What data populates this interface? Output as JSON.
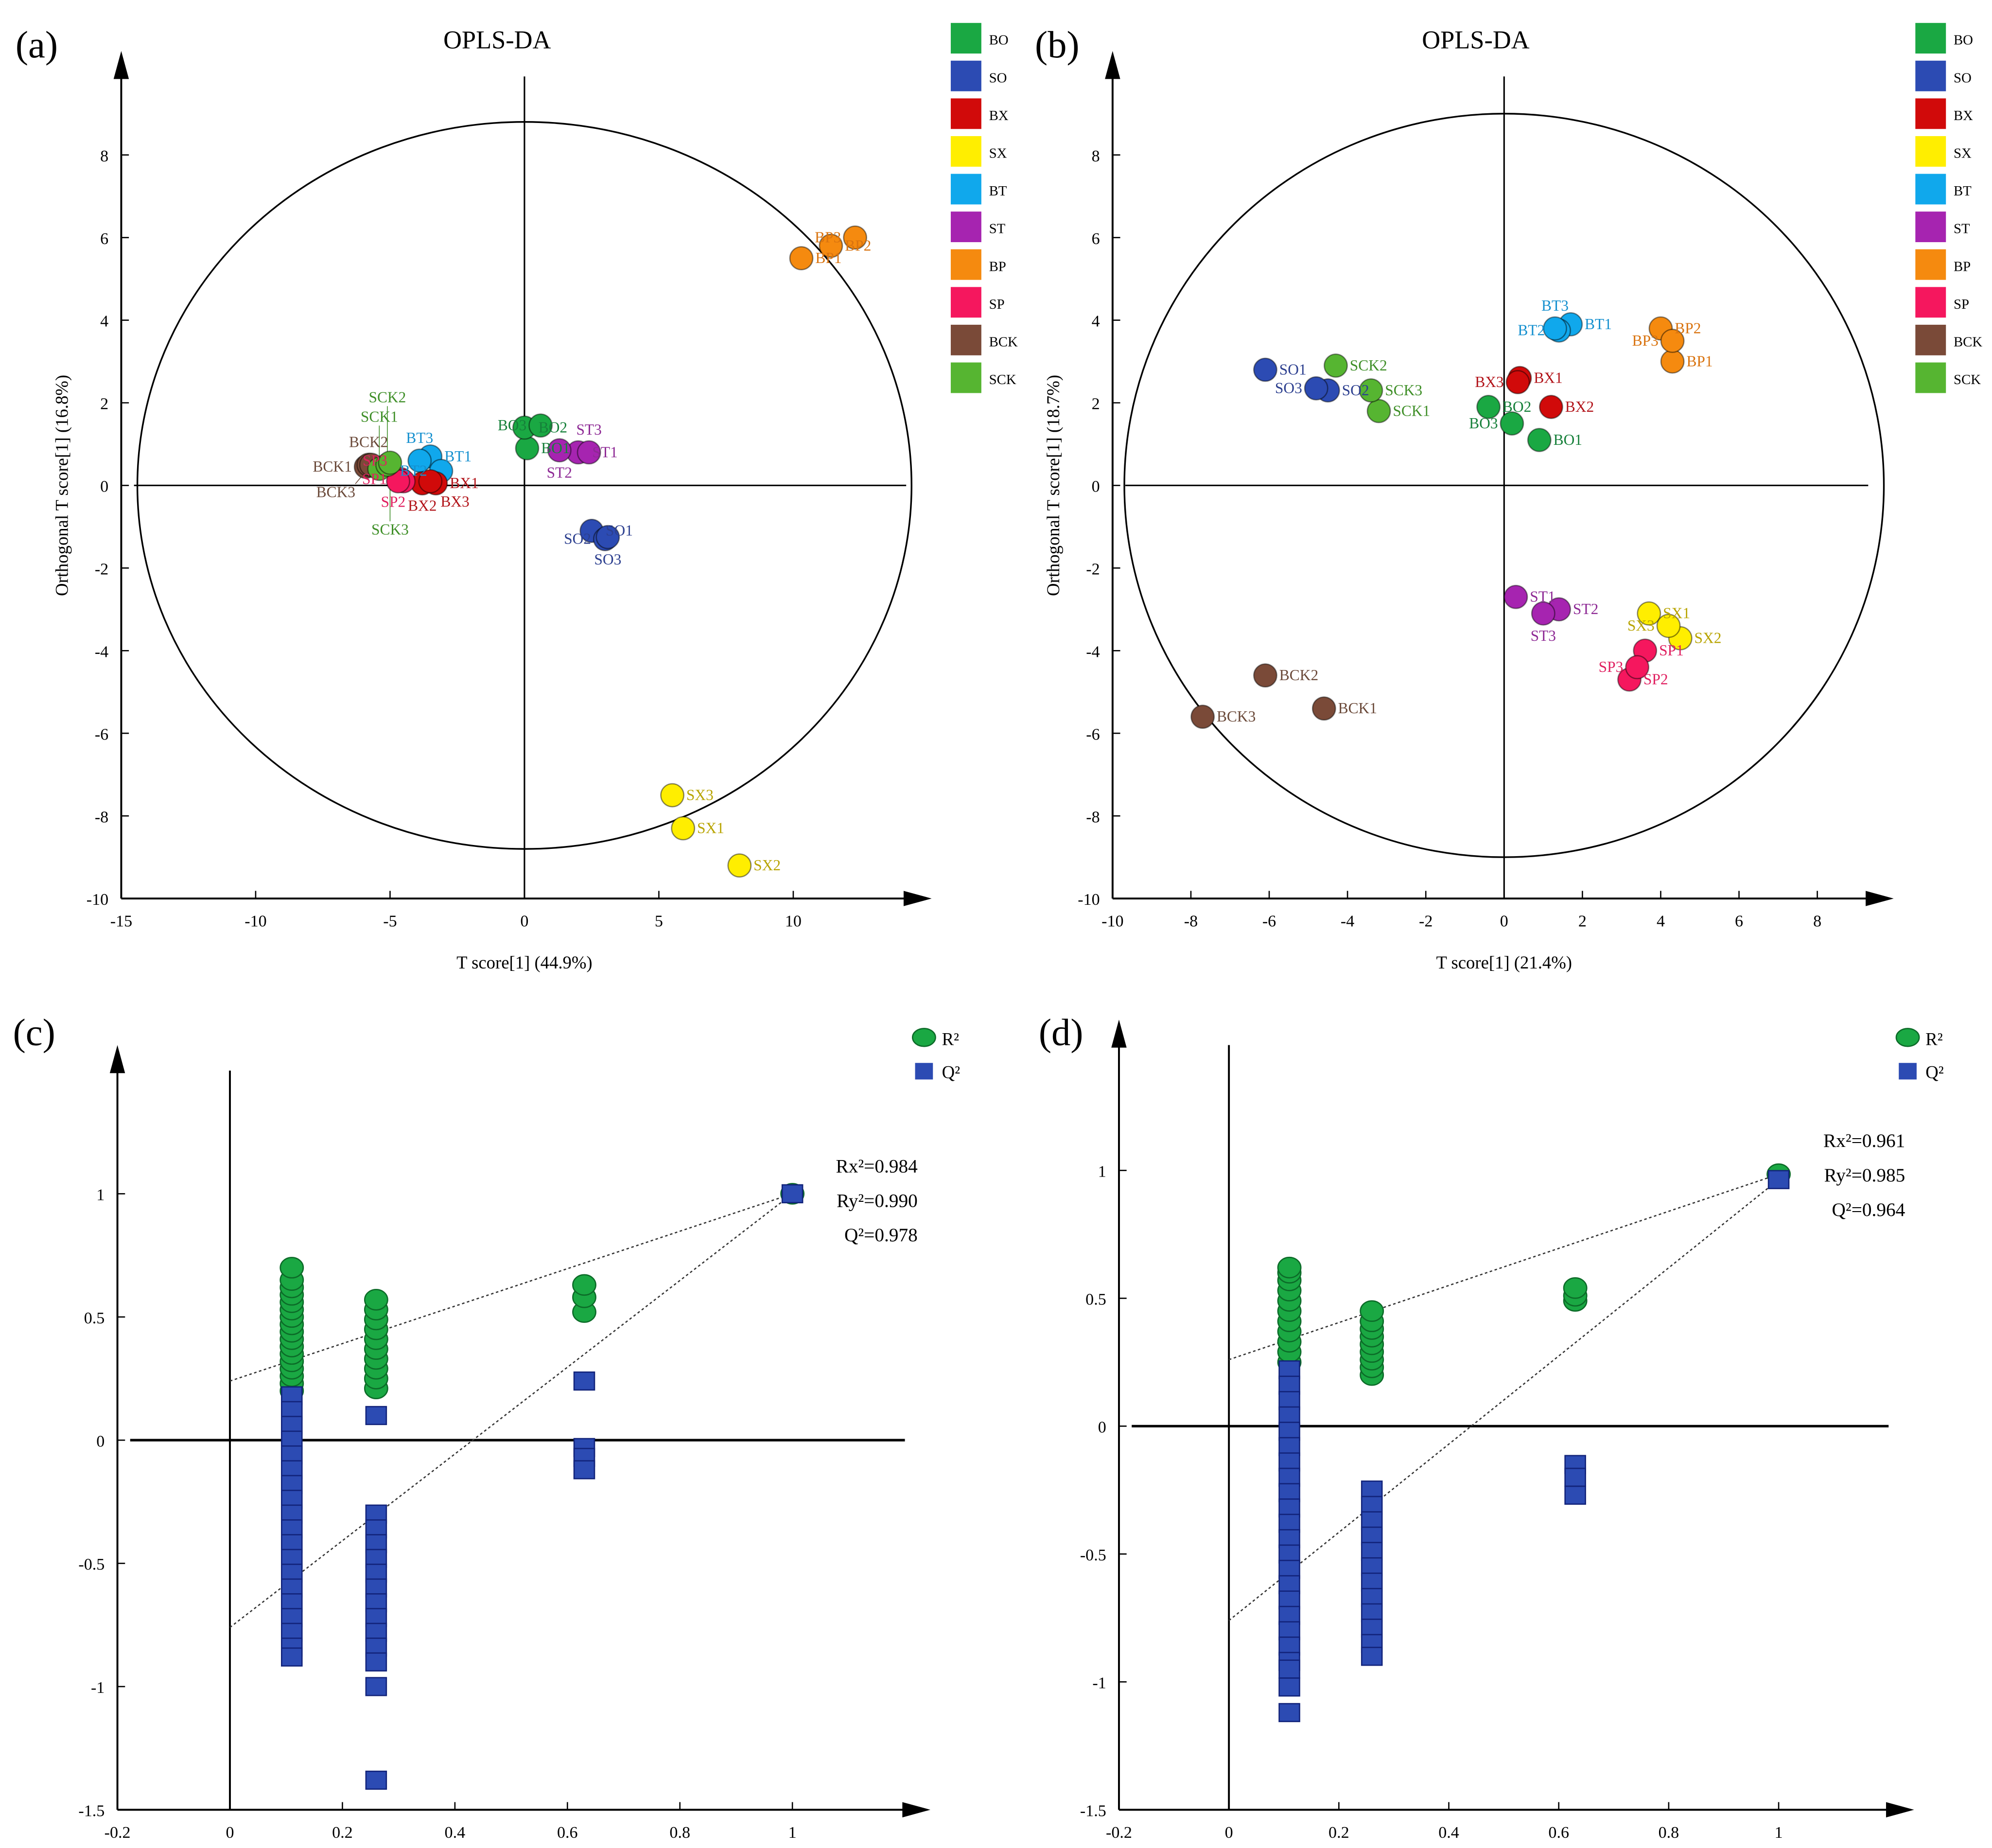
{
  "chart_data": [
    {
      "panel_label": "(a)",
      "type": "scatter",
      "title": "OPLS-DA",
      "xlabel": "T score[1] (44.9%)",
      "ylabel": "Orthogonal T score[1] (16.8%)",
      "xlim": [
        -15,
        15
      ],
      "ylim": [
        -10,
        9.5
      ],
      "xticks": [
        -15,
        -10,
        -5,
        0,
        5,
        10
      ],
      "yticks": [
        -10,
        -8,
        -6,
        -4,
        -2,
        0,
        2,
        4,
        6,
        8
      ],
      "ellipse": {
        "rx": 14.4,
        "ry": 8.8
      },
      "points": [
        {
          "label": "BP1",
          "group": "BP",
          "x": 10.3,
          "y": 5.5
        },
        {
          "label": "BP2",
          "group": "BP",
          "x": 11.4,
          "y": 5.8
        },
        {
          "label": "BP3",
          "group": "BP",
          "x": 12.3,
          "y": 6.0
        },
        {
          "label": "SX3",
          "group": "SX",
          "x": 5.5,
          "y": -7.5
        },
        {
          "label": "SX1",
          "group": "SX",
          "x": 5.9,
          "y": -8.3
        },
        {
          "label": "SX2",
          "group": "SX",
          "x": 8.0,
          "y": -9.2
        },
        {
          "label": "SO1",
          "group": "SO",
          "x": 2.5,
          "y": -1.1
        },
        {
          "label": "SO2",
          "group": "SO",
          "x": 3.0,
          "y": -1.3
        },
        {
          "label": "SO3",
          "group": "SO",
          "x": 3.1,
          "y": -1.25
        },
        {
          "label": "BO1",
          "group": "BO",
          "x": 0.1,
          "y": 0.9
        },
        {
          "label": "BO2",
          "group": "BO",
          "x": 0.0,
          "y": 1.4
        },
        {
          "label": "BO3",
          "group": "BO",
          "x": 0.6,
          "y": 1.45
        },
        {
          "label": "ST1",
          "group": "ST",
          "x": 2.0,
          "y": 0.8
        },
        {
          "label": "ST2",
          "group": "ST",
          "x": 1.3,
          "y": 0.85
        },
        {
          "label": "ST3",
          "group": "ST",
          "x": 2.4,
          "y": 0.8
        },
        {
          "label": "BT1",
          "group": "BT",
          "x": -3.5,
          "y": 0.7
        },
        {
          "label": "BT2",
          "group": "BT",
          "x": -3.1,
          "y": 0.35
        },
        {
          "label": "BT3",
          "group": "BT",
          "x": -3.9,
          "y": 0.6
        },
        {
          "label": "BX1",
          "group": "BX",
          "x": -3.3,
          "y": 0.05
        },
        {
          "label": "BX2",
          "group": "BX",
          "x": -3.8,
          "y": 0.05
        },
        {
          "label": "BX3",
          "group": "BX",
          "x": -3.5,
          "y": 0.1
        },
        {
          "label": "SP1",
          "group": "SP",
          "x": -4.6,
          "y": 0.15
        },
        {
          "label": "SP2",
          "group": "SP",
          "x": -4.5,
          "y": 0.1
        },
        {
          "label": "SP3",
          "group": "SP",
          "x": -4.7,
          "y": 0.1
        },
        {
          "label": "BCK1",
          "group": "BCK",
          "x": -5.9,
          "y": 0.45
        },
        {
          "label": "BCK2",
          "group": "BCK",
          "x": -5.8,
          "y": 0.5
        },
        {
          "label": "BCK3",
          "group": "BCK",
          "x": -5.7,
          "y": 0.5
        },
        {
          "label": "SCK1",
          "group": "SCK",
          "x": -5.4,
          "y": 0.4
        },
        {
          "label": "SCK2",
          "group": "SCK",
          "x": -5.1,
          "y": 0.5
        },
        {
          "label": "SCK3",
          "group": "SCK",
          "x": -5.0,
          "y": 0.55
        }
      ]
    },
    {
      "panel_label": "(b)",
      "type": "scatter",
      "title": "OPLS-DA",
      "xlabel": "T score[1] (21.4%)",
      "ylabel": "Orthogonal T score[1] (18.7%)",
      "xlim": [
        -10,
        9.5
      ],
      "ylim": [
        -10,
        9.5
      ],
      "xticks": [
        -10,
        -8,
        -6,
        -4,
        -2,
        0,
        2,
        4,
        6,
        8
      ],
      "yticks": [
        -10,
        -8,
        -6,
        -4,
        -2,
        0,
        2,
        4,
        6,
        8
      ],
      "ellipse": {
        "rx": 9.7,
        "ry": 9.0
      },
      "points": [
        {
          "label": "SO1",
          "group": "SO",
          "x": -6.1,
          "y": 2.8
        },
        {
          "label": "SO2",
          "group": "SO",
          "x": -4.5,
          "y": 2.3
        },
        {
          "label": "SO3",
          "group": "SO",
          "x": -4.8,
          "y": 2.35
        },
        {
          "label": "SCK1",
          "group": "SCK",
          "x": -3.2,
          "y": 1.8
        },
        {
          "label": "SCK2",
          "group": "SCK",
          "x": -4.3,
          "y": 2.9
        },
        {
          "label": "SCK3",
          "group": "SCK",
          "x": -3.4,
          "y": 2.3
        },
        {
          "label": "BO1",
          "group": "BO",
          "x": 0.9,
          "y": 1.1
        },
        {
          "label": "BO2",
          "group": "BO",
          "x": -0.4,
          "y": 1.9
        },
        {
          "label": "BO3",
          "group": "BO",
          "x": 0.2,
          "y": 1.5
        },
        {
          "label": "BX1",
          "group": "BX",
          "x": 0.4,
          "y": 2.6
        },
        {
          "label": "BX2",
          "group": "BX",
          "x": 1.2,
          "y": 1.9
        },
        {
          "label": "BX3",
          "group": "BX",
          "x": 0.35,
          "y": 2.5
        },
        {
          "label": "BT1",
          "group": "BT",
          "x": 1.7,
          "y": 3.9
        },
        {
          "label": "BT2",
          "group": "BT",
          "x": 1.4,
          "y": 3.75
        },
        {
          "label": "BT3",
          "group": "BT",
          "x": 1.3,
          "y": 3.8
        },
        {
          "label": "BP1",
          "group": "BP",
          "x": 4.3,
          "y": 3.0
        },
        {
          "label": "BP2",
          "group": "BP",
          "x": 4.0,
          "y": 3.8
        },
        {
          "label": "BP3",
          "group": "BP",
          "x": 4.3,
          "y": 3.5
        },
        {
          "label": "ST1",
          "group": "ST",
          "x": 0.3,
          "y": -2.7
        },
        {
          "label": "ST2",
          "group": "ST",
          "x": 1.4,
          "y": -3.0
        },
        {
          "label": "ST3",
          "group": "ST",
          "x": 1.0,
          "y": -3.1
        },
        {
          "label": "SX1",
          "group": "SX",
          "x": 3.7,
          "y": -3.1
        },
        {
          "label": "SX2",
          "group": "SX",
          "x": 4.5,
          "y": -3.7
        },
        {
          "label": "SX3",
          "group": "SX",
          "x": 4.2,
          "y": -3.4
        },
        {
          "label": "SP1",
          "group": "SP",
          "x": 3.6,
          "y": -4.0
        },
        {
          "label": "SP2",
          "group": "SP",
          "x": 3.2,
          "y": -4.7
        },
        {
          "label": "SP3",
          "group": "SP",
          "x": 3.4,
          "y": -4.4
        },
        {
          "label": "BCK1",
          "group": "BCK",
          "x": -4.6,
          "y": -5.4
        },
        {
          "label": "BCK2",
          "group": "BCK",
          "x": -6.1,
          "y": -4.6
        },
        {
          "label": "BCK3",
          "group": "BCK",
          "x": -7.7,
          "y": -5.6
        }
      ]
    },
    {
      "panel_label": "(c)",
      "type": "scatter",
      "title": "",
      "xlabel": "",
      "ylabel": "",
      "xlim": [
        -0.2,
        1.2
      ],
      "ylim": [
        -1.5,
        1.5
      ],
      "xticks": [
        -0.2,
        0,
        0.2,
        0.4,
        0.6,
        0.8,
        1
      ],
      "yticks": [
        -1.5,
        -1,
        -0.5,
        0,
        0.5,
        1
      ],
      "stats": [
        "0.984",
        "0.990",
        "0.978"
      ],
      "r2_intercept": 0.24,
      "q2_intercept": -0.76,
      "R2": [
        [
          0.11,
          [
            0.2,
            0.23,
            0.26,
            0.29,
            0.32,
            0.35,
            0.38,
            0.41,
            0.44,
            0.47,
            0.5,
            0.53,
            0.56,
            0.59,
            0.62,
            0.65,
            0.7
          ]
        ],
        [
          0.26,
          [
            0.21,
            0.25,
            0.29,
            0.33,
            0.37,
            0.41,
            0.45,
            0.49,
            0.53,
            0.57
          ]
        ],
        [
          0.63,
          [
            0.52,
            0.58,
            0.63
          ]
        ],
        [
          1,
          [
            1.0
          ]
        ]
      ],
      "Q2": [
        [
          0.11,
          [
            0.18,
            0.12,
            0.06,
            0.0,
            -0.06,
            -0.12,
            -0.18,
            -0.24,
            -0.3,
            -0.36,
            -0.42,
            -0.48,
            -0.54,
            -0.6,
            -0.66,
            -0.72,
            -0.78,
            -0.84,
            -0.88
          ]
        ],
        [
          0.26,
          [
            0.1,
            -0.3,
            -0.36,
            -0.42,
            -0.48,
            -0.54,
            -0.6,
            -0.66,
            -0.72,
            -0.78,
            -0.84,
            -0.9,
            -1.0,
            -1.38
          ]
        ],
        [
          0.63,
          [
            0.24,
            -0.03,
            -0.07,
            -0.12
          ]
        ],
        [
          1,
          [
            1.0
          ]
        ]
      ]
    },
    {
      "panel_label": "(d)",
      "type": "scatter",
      "title": "",
      "xlabel": "",
      "ylabel": "",
      "xlim": [
        -0.2,
        1.2
      ],
      "ylim": [
        -1.5,
        1.5
      ],
      "xticks": [
        -0.2,
        0,
        0.2,
        0.4,
        0.6,
        0.8,
        1
      ],
      "yticks": [
        -1.5,
        -1,
        -0.5,
        0,
        0.5,
        1
      ],
      "stats": [
        "0.961",
        "0.985",
        "0.964"
      ],
      "r2_intercept": 0.26,
      "q2_intercept": -0.76,
      "R2": [
        [
          0.11,
          [
            0.25,
            0.29,
            0.33,
            0.37,
            0.41,
            0.45,
            0.49,
            0.53,
            0.57,
            0.6,
            0.62
          ]
        ],
        [
          0.26,
          [
            0.2,
            0.23,
            0.26,
            0.29,
            0.32,
            0.35,
            0.38,
            0.41,
            0.45
          ]
        ],
        [
          0.63,
          [
            0.49,
            0.51,
            0.54
          ]
        ],
        [
          1,
          [
            0.985
          ]
        ]
      ],
      "Q2": [
        [
          0.11,
          [
            0.22,
            0.16,
            0.1,
            0.04,
            -0.02,
            -0.08,
            -0.14,
            -0.2,
            -0.26,
            -0.32,
            -0.38,
            -0.44,
            -0.5,
            -0.56,
            -0.62,
            -0.68,
            -0.74,
            -0.8,
            -0.86,
            -0.92,
            -0.95,
            -1.02,
            -1.12
          ]
        ],
        [
          0.26,
          [
            -0.25,
            -0.31,
            -0.37,
            -0.43,
            -0.49,
            -0.55,
            -0.61,
            -0.67,
            -0.73,
            -0.79,
            -0.85,
            -0.9
          ]
        ],
        [
          0.63,
          [
            -0.15,
            -0.2,
            -0.27
          ]
        ],
        [
          1,
          [
            0.964
          ]
        ]
      ]
    }
  ],
  "legend_groups": [
    {
      "name": "BO",
      "color": "#1aa843"
    },
    {
      "name": "SO",
      "color": "#2c4bb3"
    },
    {
      "name": "BX",
      "color": "#d10a0a"
    },
    {
      "name": "SX",
      "color": "#ffee00"
    },
    {
      "name": "BT",
      "color": "#10a8ec"
    },
    {
      "name": "ST",
      "color": "#a624b0"
    },
    {
      "name": "BP",
      "color": "#f58a0f"
    },
    {
      "name": "SP",
      "color": "#f5175e"
    },
    {
      "name": "BCK",
      "color": "#7a4a38"
    },
    {
      "name": "SCK",
      "color": "#56b531"
    }
  ],
  "label_colors": {
    "BO": "#16803a",
    "SO": "#2c3f8f",
    "BX": "#b2141a",
    "SX": "#b8a400",
    "BT": "#1590cf",
    "ST": "#8e2a95",
    "BP": "#d9730f",
    "SP": "#e02060",
    "BCK": "#6b4a3a",
    "SCK": "#3f8f28"
  },
  "perm_legend": [
    {
      "name": "R²",
      "color": "#1aa843"
    },
    {
      "name": "Q²",
      "color": "#2c4bb3"
    }
  ],
  "stat_labels": [
    "Rx²=",
    "Ry²=",
    "Q²="
  ]
}
